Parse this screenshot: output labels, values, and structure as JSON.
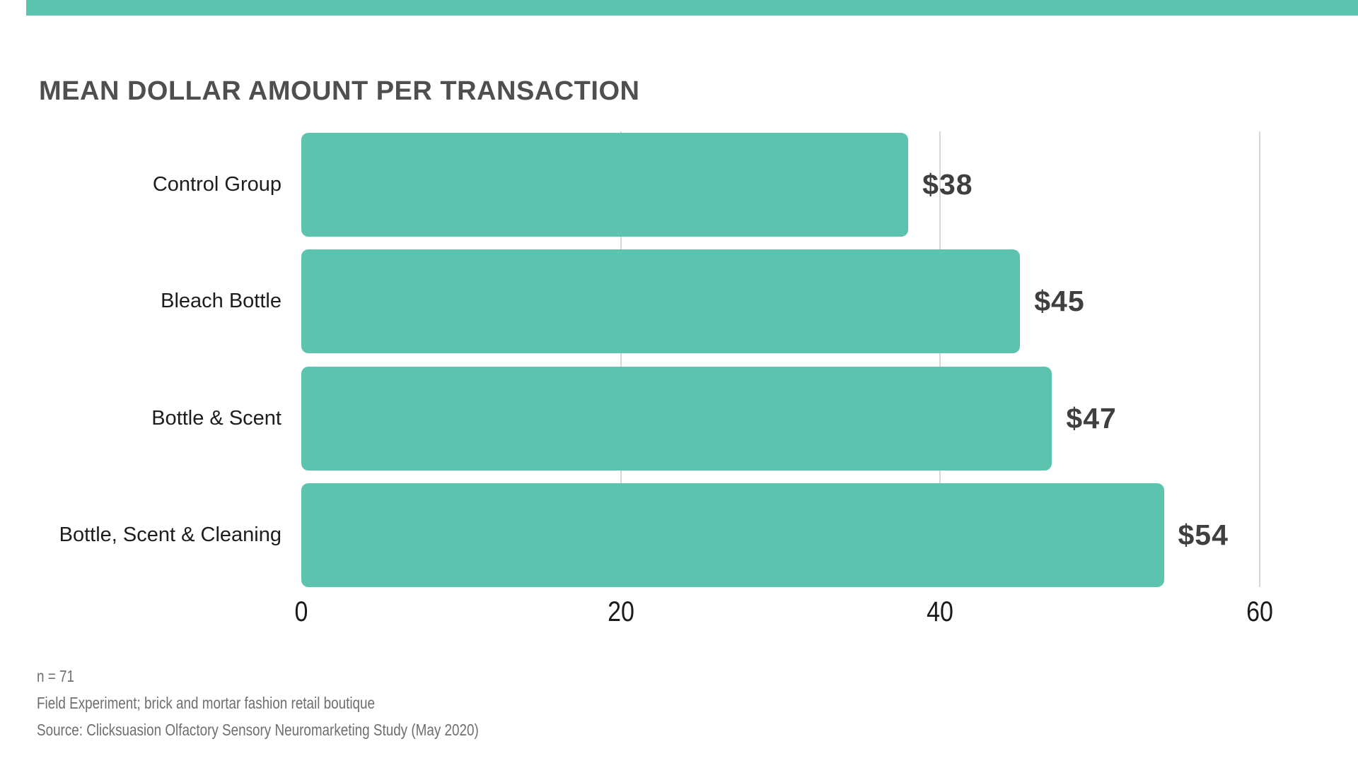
{
  "title": "MEAN DOLLAR AMOUNT PER TRANSACTION",
  "chart_data": {
    "type": "bar",
    "orientation": "horizontal",
    "title": "MEAN DOLLAR AMOUNT PER TRANSACTION",
    "categories": [
      "Control Group",
      "Bleach Bottle",
      "Bottle & Scent",
      "Bottle, Scent & Cleaning"
    ],
    "values": [
      38,
      45,
      47,
      54
    ],
    "value_labels": [
      "$38",
      "$45",
      "$47",
      "$54"
    ],
    "xlabel": "",
    "ylabel": "",
    "xlim": [
      0,
      60
    ],
    "x_ticks": [
      0,
      20,
      40,
      60
    ],
    "grid": "vertical gridlines at 20, 40, 60 only, behind bars",
    "legend": "none",
    "bar_color": "#5cc3af"
  },
  "footnotes": [
    "n = 71",
    "Field Experiment; brick and mortar fashion retail boutique",
    "Source: Clicksuasion Olfactory Sensory Neuromarketing Study (May 2020)"
  ],
  "colors": {
    "accent": "#5cc3af",
    "bar": "#5cc3af",
    "background": "#ffffff",
    "title_text": "#4f4f4f",
    "category_text": "#1d1d1d",
    "value_text": "#3f3f3f",
    "tick_text": "#1a1a1a",
    "footnote_text": "#6e6e6e",
    "gridline": "#d7d7d7"
  }
}
